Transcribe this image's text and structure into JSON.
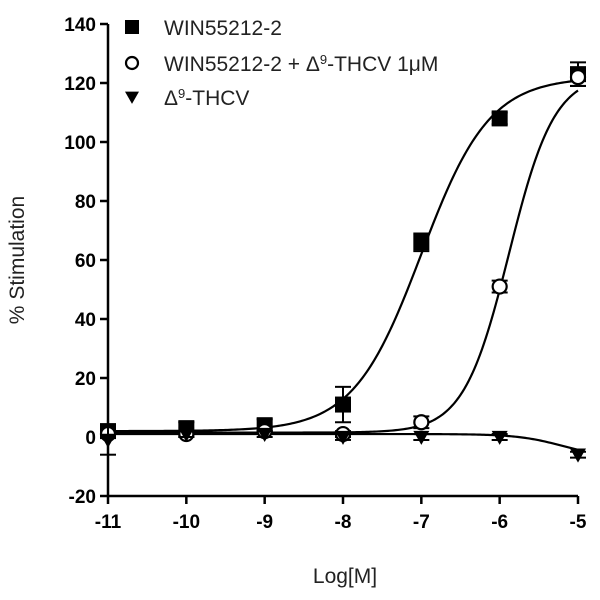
{
  "chart_data": {
    "type": "scatter",
    "title": "",
    "xlabel": "Log[M]",
    "ylabel": "% Stimulation",
    "xlim": [
      -11,
      -5
    ],
    "ylim": [
      -20,
      140
    ],
    "xticks": [
      -11,
      -10,
      -9,
      -8,
      -7,
      -6,
      -5
    ],
    "yticks": [
      -20,
      0,
      20,
      40,
      60,
      80,
      100,
      120,
      140
    ],
    "grid": false,
    "legend_position": "top-left",
    "series": [
      {
        "name": "WIN55212-2",
        "marker": "filled-square",
        "x": [
          -11,
          -10,
          -9,
          -8,
          -7,
          -6,
          -5
        ],
        "y": [
          2,
          3,
          4,
          11,
          66,
          108,
          123
        ],
        "err": [
          2,
          2,
          2,
          6,
          3,
          2,
          4
        ],
        "fit": {
          "bottom": 2,
          "top": 122,
          "logEC50": -7.0,
          "hill": 1.0
        }
      },
      {
        "name": "WIN55212-2 + Δ9-THCV 1μM",
        "legend_label": {
          "prefix": "WIN55212-2 + Δ",
          "sup": "9",
          "suffix": "-THCV 1μM"
        },
        "marker": "open-circle",
        "x": [
          -11,
          -10,
          -9,
          -8,
          -7,
          -6,
          -5
        ],
        "y": [
          1,
          1,
          2,
          1,
          5,
          51,
          122
        ],
        "err": [
          1,
          1,
          1,
          1,
          2,
          2,
          3
        ],
        "fit": {
          "bottom": 1.5,
          "top": 123,
          "logEC50": -5.88,
          "hill": 1.5
        }
      },
      {
        "name": "Δ9-THCV",
        "legend_label": {
          "prefix": "Δ",
          "sup": "9",
          "suffix": "-THCV"
        },
        "marker": "filled-triangle-down",
        "x": [
          -11,
          -10,
          -9,
          -8,
          -7,
          -6,
          -5
        ],
        "y": [
          -1,
          1,
          1,
          0,
          0,
          0,
          -6
        ],
        "err": [
          5,
          1,
          1,
          1,
          1,
          1,
          1
        ],
        "fit": {
          "bottom": 1,
          "top": -7,
          "logEC50": -5.2,
          "hill": 1.5
        }
      }
    ],
    "colors": {
      "axis": "#000000",
      "marker": "#000000",
      "text": "#222222"
    }
  }
}
